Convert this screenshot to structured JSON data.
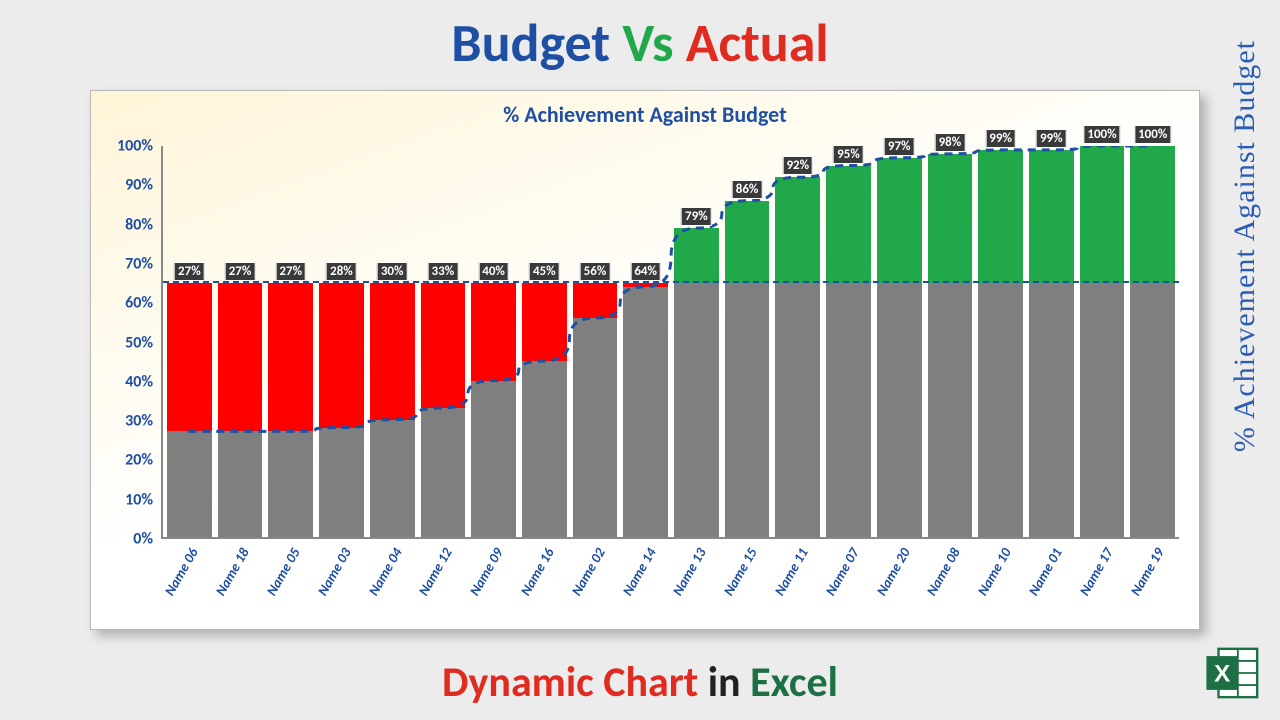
{
  "title_top": {
    "w1": "Budget",
    "w2": "Vs",
    "w3": "Actual"
  },
  "title_bottom": {
    "w1": "Dynamic Chart",
    "w2": "in",
    "w3": "Excel"
  },
  "vertical_label": "% Achievement Against Budget",
  "chart": {
    "type": "bar",
    "title": "% Achievement Against Budget",
    "title_fontsize": 22,
    "title_color": "#1e4fa3",
    "background_gradient": [
      "#fff5d8",
      "#ffffff"
    ],
    "ylim": [
      0,
      100
    ],
    "ytick_step": 10,
    "ylabel_suffix": "%",
    "axis_label_color": "#1e4fa3",
    "axis_label_fontsize": 16,
    "threshold": 65,
    "threshold_color": "#1e4fa3",
    "actual_color": "#7f7f7f",
    "below_color": "#ff0000",
    "above_color": "#21a84a",
    "label_bg": "#3a3a3a",
    "label_fg": "#ffffff",
    "trend_line_color": "#1e4fa3",
    "categories": [
      "Name 06",
      "Name 18",
      "Name 05",
      "Name 03",
      "Name 04",
      "Name 12",
      "Name 09",
      "Name 16",
      "Name 02",
      "Name 14",
      "Name 13",
      "Name 15",
      "Name 11",
      "Name 07",
      "Name 20",
      "Name 08",
      "Name 10",
      "Name 01",
      "Name 17",
      "Name 19"
    ],
    "values": [
      27,
      27,
      27,
      28,
      30,
      33,
      40,
      45,
      56,
      64,
      79,
      86,
      92,
      95,
      97,
      98,
      99,
      99,
      100,
      100
    ]
  },
  "colors": {
    "budget_word": "#1e4fa3",
    "vs_word": "#21a84a",
    "actual_word": "#e02b20",
    "dynamic_word": "#e02b20",
    "in_word": "#222222",
    "excel_word": "#1d7044",
    "page_bg": "#ececec"
  },
  "fonts": {
    "title_size": 54,
    "subtitle_size": 42,
    "vertical_size": 30,
    "xlabel_size": 14
  },
  "excel_icon": {
    "fill": "#1d7044",
    "letter": "X"
  }
}
